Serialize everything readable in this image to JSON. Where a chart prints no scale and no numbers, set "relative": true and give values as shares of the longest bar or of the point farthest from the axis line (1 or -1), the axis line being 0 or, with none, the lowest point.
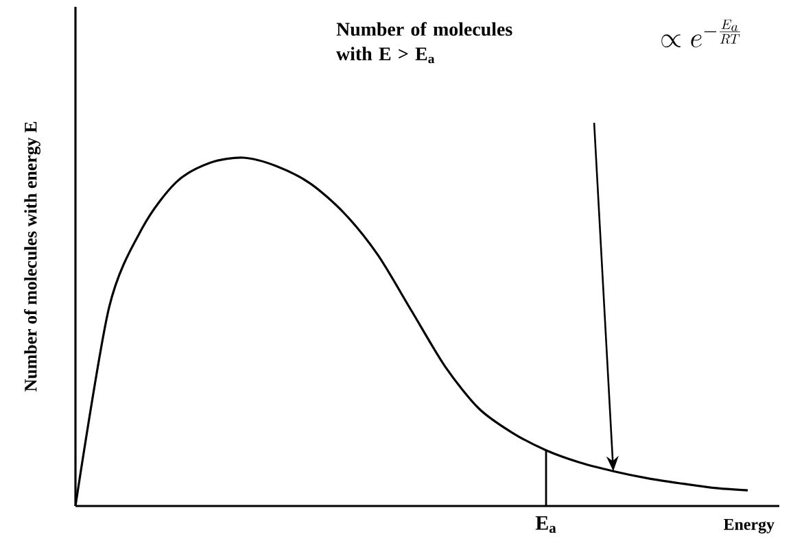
{
  "chart_data": {
    "type": "line",
    "relative": true,
    "xlabel": "Energy",
    "ylabel": "Number of molecules with energy E",
    "categories": [
      null,
      null,
      null,
      null,
      null,
      null,
      null,
      null,
      null,
      null,
      null,
      null,
      null,
      null,
      null,
      null,
      null,
      null,
      null,
      null,
      null
    ],
    "series": [
      {
        "color": "#000000",
        "values": [
          0,
          0.57,
          0.8,
          0.93,
          0.985,
          1.0,
          0.975,
          0.925,
          0.84,
          0.72,
          0.56,
          0.4,
          0.28,
          0.21,
          0.16,
          0.125,
          0.1,
          0.08,
          0.065,
          0.052,
          0.045
        ]
      }
    ],
    "annotations": [
      "Number of molecules with E > E$_{a}$",
      "\\propto e^{-\\frac{E_a}{RT}}",
      {
        "text": "E$_{a}$",
        "y": 0.16
      }
    ]
  }
}
